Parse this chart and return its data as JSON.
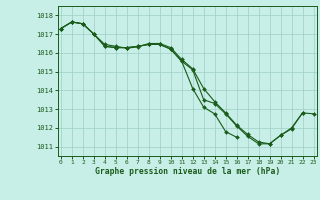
{
  "x": [
    0,
    1,
    2,
    3,
    4,
    5,
    6,
    7,
    8,
    9,
    10,
    11,
    12,
    13,
    14,
    15,
    16,
    17,
    18,
    19,
    20,
    21,
    22,
    23
  ],
  "series1": [
    1017.3,
    1017.65,
    1017.55,
    1017.0,
    1016.35,
    1016.28,
    1016.28,
    1016.35,
    1016.45,
    1016.45,
    1016.2,
    1015.55,
    1015.1,
    1013.5,
    1013.3,
    1012.75,
    1012.1,
    1011.55,
    1011.15,
    1011.15,
    1011.6,
    1011.95,
    1012.8,
    null
  ],
  "series2": [
    1017.3,
    1017.65,
    1017.55,
    1017.0,
    1016.35,
    1016.28,
    1016.28,
    1016.35,
    1016.45,
    1016.45,
    1016.2,
    1015.55,
    1014.1,
    1013.1,
    1012.75,
    1011.8,
    1011.5,
    null,
    null,
    null,
    null,
    null,
    null,
    null
  ],
  "series3": [
    1017.3,
    1017.65,
    1017.55,
    1017.0,
    1016.45,
    1016.35,
    1016.25,
    1016.32,
    1016.5,
    1016.5,
    1016.28,
    1015.65,
    1015.15,
    1014.1,
    1013.4,
    1012.8,
    1012.15,
    1011.65,
    1011.25,
    1011.15,
    1011.6,
    1012.0,
    1012.8,
    1012.75
  ],
  "background_color": "#c8eee8",
  "grid_color": "#9dcfc4",
  "line_color": "#1a5c1a",
  "xlabel": "Graphe pression niveau de la mer (hPa)",
  "ylim": [
    1010.5,
    1018.5
  ],
  "xlim": [
    -0.3,
    23.3
  ],
  "yticks": [
    1011,
    1012,
    1013,
    1014,
    1015,
    1016,
    1017,
    1018
  ],
  "xticks": [
    0,
    1,
    2,
    3,
    4,
    5,
    6,
    7,
    8,
    9,
    10,
    11,
    12,
    13,
    14,
    15,
    16,
    17,
    18,
    19,
    20,
    21,
    22,
    23
  ],
  "ytop": 1018.5
}
